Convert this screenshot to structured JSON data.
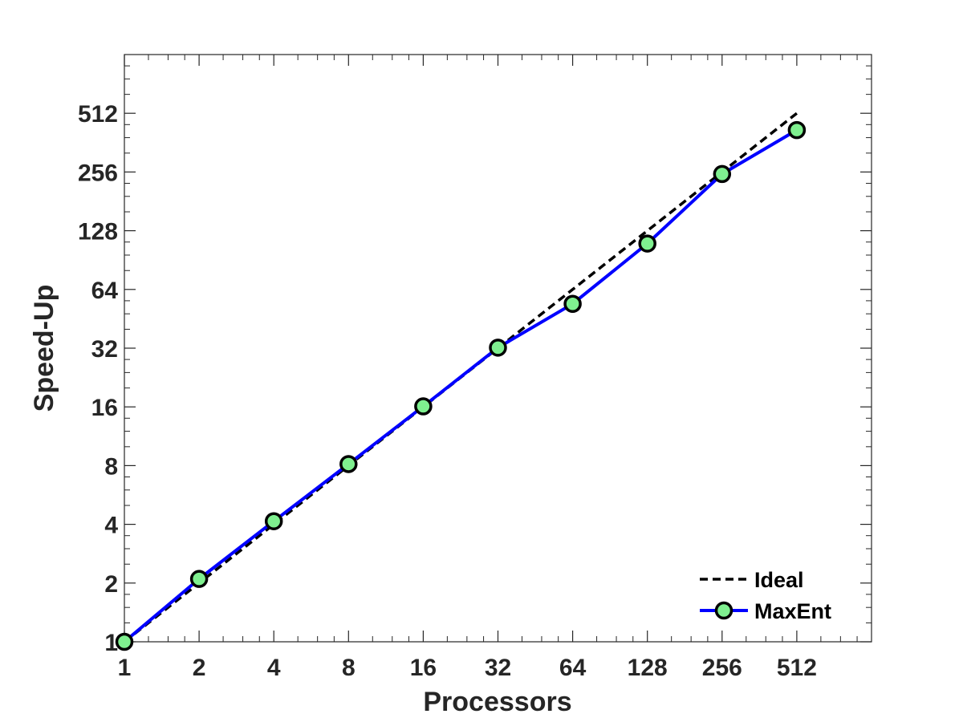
{
  "chart_data": {
    "type": "line",
    "xlabel": "Processors",
    "ylabel": "Speed-Up",
    "x_scale": "log2",
    "y_scale": "log2",
    "xlim": [
      1,
      1024
    ],
    "ylim": [
      1,
      1024
    ],
    "x_ticks": [
      1,
      2,
      4,
      8,
      16,
      32,
      64,
      128,
      256,
      512
    ],
    "x_tick_labels": [
      "1",
      "2",
      "4",
      "8",
      "16",
      "32",
      "64",
      "128",
      "256",
      "512"
    ],
    "y_ticks": [
      1,
      2,
      4,
      8,
      16,
      32,
      64,
      128,
      256,
      512
    ],
    "y_tick_labels": [
      "1",
      "2",
      "4",
      "8",
      "16",
      "32",
      "64",
      "128",
      "256",
      "512"
    ],
    "grid": false,
    "legend_position": "bottom-right",
    "series": [
      {
        "name": "Ideal",
        "style": "dashed",
        "color": "#000000",
        "x": [
          1,
          2,
          4,
          8,
          16,
          32,
          64,
          128,
          256,
          512
        ],
        "y": [
          1,
          2,
          4,
          8,
          16,
          32,
          64,
          128,
          256,
          512
        ]
      },
      {
        "name": "MaxEnt",
        "style": "solid",
        "color": "#0000ff",
        "marker": "circle",
        "marker_fill": "#7ff08f",
        "marker_edge": "#000000",
        "x": [
          1,
          2,
          4,
          8,
          16,
          32,
          64,
          128,
          256,
          512
        ],
        "y": [
          1,
          2.1,
          4.15,
          8.15,
          16.1,
          32.2,
          54,
          110,
          250,
          420
        ]
      }
    ]
  }
}
